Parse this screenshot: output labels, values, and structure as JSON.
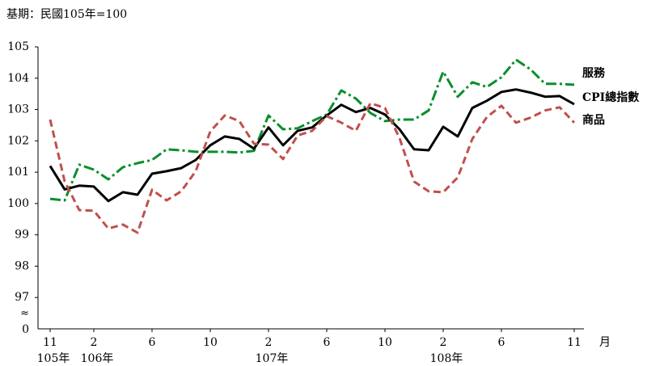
{
  "chart_data": {
    "type": "line",
    "subtitle": "基期：民國105年=100",
    "categories": [
      "11",
      null,
      null,
      "2",
      null,
      null,
      null,
      "6",
      null,
      null,
      null,
      "10",
      null,
      null,
      null,
      "2",
      null,
      null,
      null,
      "6",
      null,
      null,
      null,
      "10",
      null,
      null,
      null,
      "2",
      null,
      null,
      null,
      "6",
      null,
      null,
      null,
      null,
      "11"
    ],
    "x_year_labels": [
      "105年",
      null,
      null,
      "106年",
      null,
      null,
      null,
      null,
      null,
      null,
      null,
      null,
      null,
      null,
      null,
      "107年",
      null,
      null,
      null,
      null,
      null,
      null,
      null,
      null,
      null,
      null,
      null,
      "108年",
      null,
      null,
      null,
      null,
      null,
      null,
      null,
      null,
      null
    ],
    "x_unit": "月",
    "y_origin_label": "0",
    "ylim": [
      96,
      105
    ],
    "yticks": [
      97,
      98,
      99,
      100,
      101,
      102,
      103,
      104,
      105
    ],
    "series": [
      {
        "name": "服務",
        "color": "#0a8f2a",
        "line_style": "dashdot",
        "values": [
          100.15,
          100.1,
          101.24,
          101.08,
          100.77,
          101.16,
          101.29,
          101.39,
          101.73,
          101.7,
          101.65,
          101.65,
          101.65,
          101.63,
          101.68,
          102.81,
          102.37,
          102.4,
          102.63,
          102.84,
          103.61,
          103.35,
          102.89,
          102.63,
          102.68,
          102.68,
          102.97,
          104.21,
          103.41,
          103.87,
          103.72,
          104.03,
          104.59,
          104.28,
          103.82,
          103.82,
          103.79
        ]
      },
      {
        "name": "CPI總指數",
        "color": "#000000",
        "line_style": "solid",
        "values": [
          101.2,
          100.45,
          100.57,
          100.54,
          100.08,
          100.36,
          100.28,
          100.95,
          101.03,
          101.13,
          101.39,
          101.86,
          102.14,
          102.06,
          101.75,
          102.43,
          101.86,
          102.32,
          102.43,
          102.81,
          103.15,
          102.92,
          103.05,
          102.84,
          102.37,
          101.73,
          101.7,
          102.45,
          102.14,
          103.05,
          103.28,
          103.56,
          103.64,
          103.54,
          103.41,
          103.43,
          103.17
        ]
      },
      {
        "name": "商品",
        "color": "#c0504d",
        "line_style": "dashed",
        "values": [
          102.68,
          100.7,
          99.79,
          99.77,
          99.2,
          99.33,
          99.07,
          100.44,
          100.1,
          100.39,
          101.03,
          102.3,
          102.81,
          102.63,
          101.91,
          101.88,
          101.42,
          102.17,
          102.32,
          102.79,
          102.58,
          102.32,
          103.2,
          103.05,
          102.09,
          100.7,
          100.39,
          100.36,
          100.83,
          102.06,
          102.76,
          103.12,
          102.58,
          102.74,
          102.97,
          103.07,
          102.58
        ]
      }
    ]
  }
}
